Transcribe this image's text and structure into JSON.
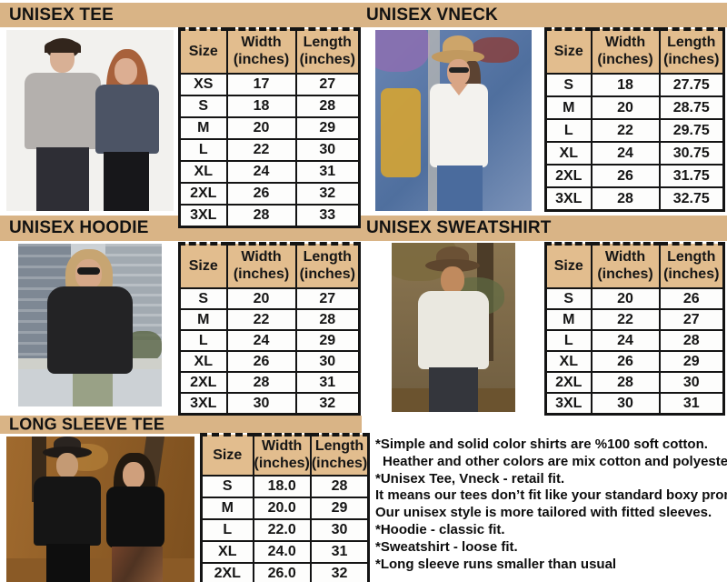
{
  "chart_data": [
    {
      "type": "table",
      "title": "UNISEX TEE",
      "columns": [
        "Size",
        "Width (inches)",
        "Length (inches)"
      ],
      "rows": [
        [
          "XS",
          "17",
          "27"
        ],
        [
          "S",
          "18",
          "28"
        ],
        [
          "M",
          "20",
          "29"
        ],
        [
          "L",
          "22",
          "30"
        ],
        [
          "XL",
          "24",
          "31"
        ],
        [
          "2XL",
          "26",
          "32"
        ],
        [
          "3XL",
          "28",
          "33"
        ]
      ]
    },
    {
      "type": "table",
      "title": "UNISEX VNECK",
      "columns": [
        "Size",
        "Width (inches)",
        "Length (inches)"
      ],
      "rows": [
        [
          "S",
          "18",
          "27.75"
        ],
        [
          "M",
          "20",
          "28.75"
        ],
        [
          "L",
          "22",
          "29.75"
        ],
        [
          "XL",
          "24",
          "30.75"
        ],
        [
          "2XL",
          "26",
          "31.75"
        ],
        [
          "3XL",
          "28",
          "32.75"
        ]
      ]
    },
    {
      "type": "table",
      "title": "UNISEX HOODIE",
      "columns": [
        "Size",
        "Width (inches)",
        "Length (inches)"
      ],
      "rows": [
        [
          "S",
          "20",
          "27"
        ],
        [
          "M",
          "22",
          "28"
        ],
        [
          "L",
          "24",
          "29"
        ],
        [
          "XL",
          "26",
          "30"
        ],
        [
          "2XL",
          "28",
          "31"
        ],
        [
          "3XL",
          "30",
          "32"
        ]
      ]
    },
    {
      "type": "table",
      "title": "UNISEX SWEATSHIRT",
      "columns": [
        "Size",
        "Width (inches)",
        "Length (inches)"
      ],
      "rows": [
        [
          "S",
          "20",
          "26"
        ],
        [
          "M",
          "22",
          "27"
        ],
        [
          "L",
          "24",
          "28"
        ],
        [
          "XL",
          "26",
          "29"
        ],
        [
          "2XL",
          "28",
          "30"
        ],
        [
          "3XL",
          "30",
          "31"
        ]
      ]
    },
    {
      "type": "table",
      "title": "LONG SLEEVE TEE",
      "columns": [
        "Size",
        "Width (inches)",
        "Length (inches)"
      ],
      "rows": [
        [
          "S",
          "18.0",
          "28"
        ],
        [
          "M",
          "20.0",
          "29"
        ],
        [
          "L",
          "22.0",
          "30"
        ],
        [
          "XL",
          "24.0",
          "31"
        ],
        [
          "2XL",
          "26.0",
          "32"
        ]
      ]
    }
  ],
  "table_headers": {
    "size": "Size",
    "width": "Width",
    "length": "Length",
    "unit": "(inches)"
  },
  "notes": {
    "lines": [
      "*Simple and solid color shirts are %100 soft cotton.",
      "Heather and other colors are mix cotton and polyester.",
      "*Unisex Tee, Vneck - retail fit.",
      "It means our tees don’t fit like your standard boxy promo tee.",
      "Our unisex style is more tailored with fitted sleeves.",
      "*Hoodie - classic fit.",
      "*Sweatshirt - loose fit.",
      "*Long sleeve runs smaller than usual"
    ]
  },
  "photos": {
    "tee": "Two models wearing heather gray and slate blue unisex tees",
    "vneck": "Woman in white v-neck tee and straw hat leaning on graffiti wall",
    "hoodie": "Woman in black hoodie and sunglasses with city buildings behind",
    "sweatshirt": "Man in white sweatshirt and brown brim hat among trees",
    "longsleeve": "Couple wearing black long sleeve tees in an autumn park"
  },
  "colors": {
    "band": "#d9b486",
    "header_cell": "#e2bd8e",
    "table_border": "#141414",
    "text": "#111111",
    "page_bg": "#ffffff"
  }
}
